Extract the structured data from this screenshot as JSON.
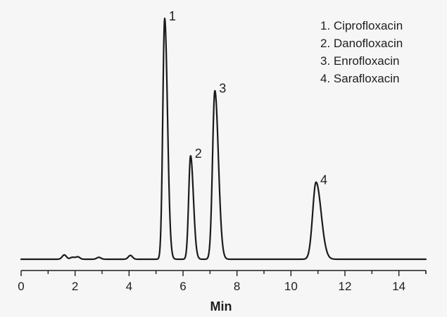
{
  "chart_data": {
    "type": "line",
    "title": "",
    "xlabel": "Min",
    "ylabel": "",
    "xlim": [
      0,
      15
    ],
    "ylim": [
      0,
      1
    ],
    "grid": false,
    "legend_position": "top-right",
    "x_ticks": [
      0,
      2,
      4,
      6,
      8,
      10,
      12,
      14
    ],
    "x_tick_labels": [
      "0",
      "2",
      "4",
      "6",
      "8",
      "10",
      "12",
      "14"
    ],
    "line_color": "#1b1b1b",
    "background_color": "#f6f6f6",
    "peaks": [
      {
        "label": "1",
        "name": "Ciprofloxacin",
        "retention_time": 5.32,
        "height": 1.0
      },
      {
        "label": "2",
        "name": "Danofloxacin",
        "retention_time": 6.28,
        "height": 0.43
      },
      {
        "label": "3",
        "name": "Enrofloxacin",
        "retention_time": 7.18,
        "height": 0.7
      },
      {
        "label": "4",
        "name": "Sarafloxacin",
        "retention_time": 10.93,
        "height": 0.32
      }
    ],
    "minor_peaks": [
      {
        "retention_time": 1.6,
        "height": 0.018
      },
      {
        "retention_time": 1.9,
        "height": 0.008
      },
      {
        "retention_time": 2.1,
        "height": 0.01
      },
      {
        "retention_time": 2.88,
        "height": 0.008
      },
      {
        "retention_time": 4.05,
        "height": 0.016
      }
    ],
    "legend": [
      "1.  Ciprofloxacin",
      "2.  Danofloxacin",
      "3.  Enrofloxacin",
      "4.  Sarafloxacin"
    ]
  }
}
